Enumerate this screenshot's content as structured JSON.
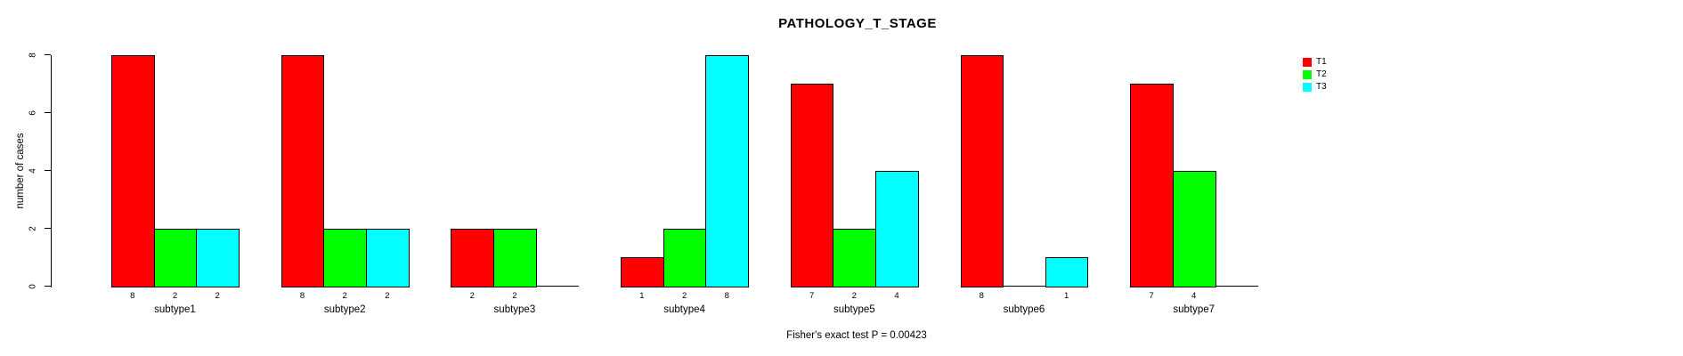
{
  "chart_data": {
    "type": "bar",
    "title": "PATHOLOGY_T_STAGE",
    "ylabel": "number of cases",
    "xlabel": "",
    "caption": "Fisher's exact test P = 0.00423",
    "categories": [
      "subtype1",
      "subtype2",
      "subtype3",
      "subtype4",
      "subtype5",
      "subtype6",
      "subtype7"
    ],
    "series": [
      {
        "name": "T1",
        "color": "#ff0000",
        "values": [
          8,
          8,
          2,
          1,
          7,
          8,
          7
        ]
      },
      {
        "name": "T2",
        "color": "#00ff00",
        "values": [
          2,
          2,
          2,
          2,
          2,
          0,
          4
        ]
      },
      {
        "name": "T3",
        "color": "#00ffff",
        "values": [
          2,
          2,
          0,
          8,
          4,
          1,
          0
        ]
      }
    ],
    "ylim": [
      0,
      8
    ],
    "yticks": [
      0,
      2,
      4,
      6,
      8
    ],
    "legend_position": "top-right",
    "legend_entries": [
      "T1",
      "T2",
      "T3"
    ],
    "grid": false,
    "bar_value_labels": "value printed under each non-zero bar",
    "axis_color": "#000000",
    "text_color": "#000000",
    "background_color": "#ffffff"
  }
}
